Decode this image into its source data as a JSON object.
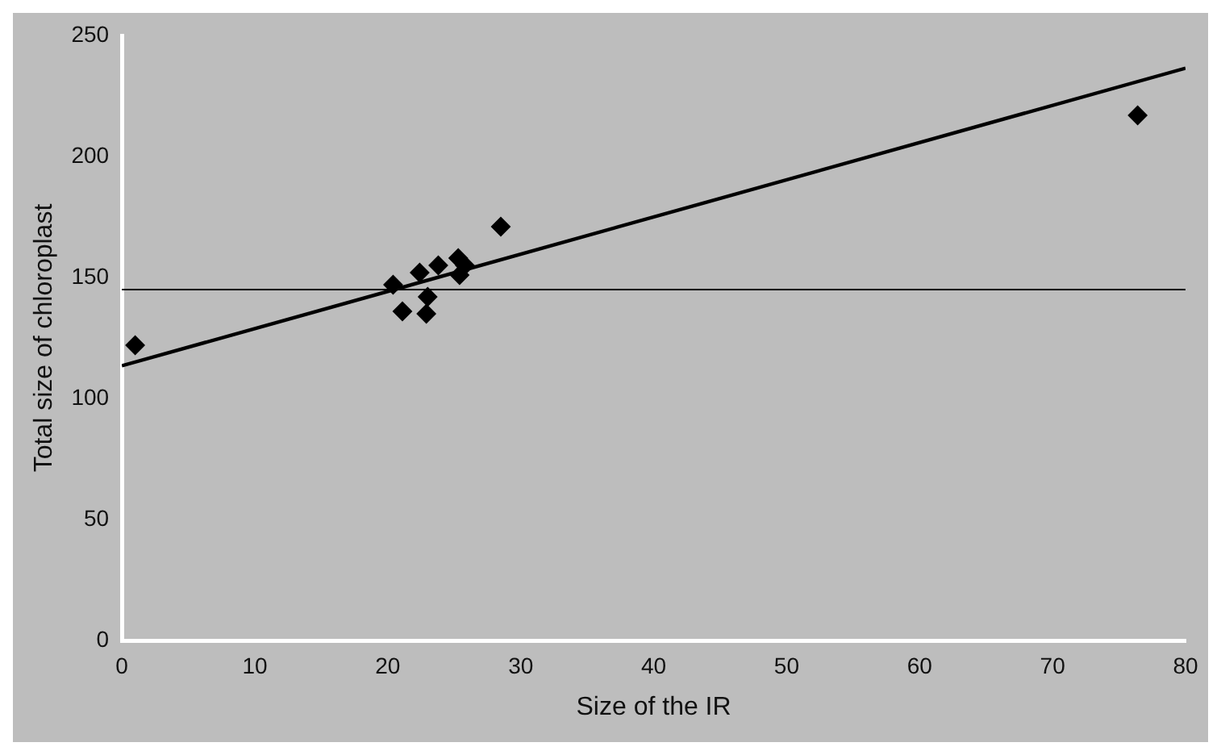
{
  "chart_data": {
    "type": "scatter",
    "xlabel": "Size of the IR",
    "ylabel": "Total size of chloroplast",
    "x": [
      1.0,
      20.4,
      21.1,
      22.4,
      23.0,
      22.9,
      23.8,
      25.3,
      25.4,
      25.8,
      28.5,
      76.4
    ],
    "series": [
      {
        "type": "scatter",
        "color": "#000000",
        "marker": "diamond",
        "values": [
          122,
          147,
          136,
          152,
          142,
          135,
          155,
          158,
          151,
          155,
          171,
          217
        ]
      },
      {
        "type": "line",
        "color": "#000000",
        "marker": "none",
        "x": [
          0,
          80
        ],
        "values": [
          113.5,
          236.5
        ]
      }
    ],
    "xlim": [
      0,
      80
    ],
    "xticks": [
      0,
      10,
      20,
      30,
      40,
      50,
      60,
      70,
      80
    ],
    "ylim": [
      0,
      250
    ],
    "yticks": [
      0,
      50,
      100,
      150,
      200,
      250
    ],
    "ref_lines": [
      {
        "axis": "y",
        "value": 145,
        "color": "#000000"
      }
    ],
    "grid": false,
    "legend": false
  }
}
